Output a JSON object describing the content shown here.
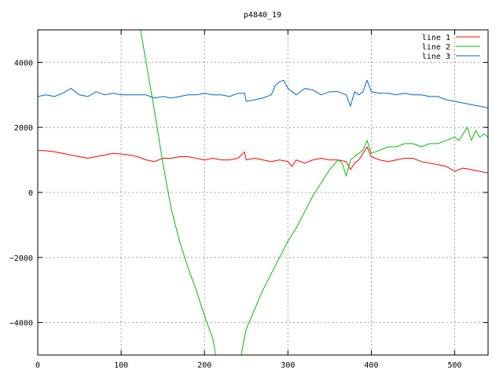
{
  "chart_data": {
    "type": "line",
    "title": "p4840_19",
    "xlabel": "",
    "ylabel": "",
    "xlim": [
      0,
      540
    ],
    "ylim": [
      -5000,
      5000
    ],
    "xticks": [
      0,
      100,
      200,
      300,
      400,
      500
    ],
    "yticks": [
      -4000,
      -2000,
      0,
      2000,
      4000
    ],
    "xtick_labels": [
      "0",
      "100",
      "200",
      "300",
      "400",
      "500"
    ],
    "ytick_labels": [
      "−4000",
      "−2000",
      "0",
      "2000",
      "4000"
    ],
    "grid": true,
    "legend_position": "top-right",
    "series": [
      {
        "name": "line 1",
        "color": "#ff0000",
        "x": [
          0,
          10,
          20,
          30,
          40,
          50,
          60,
          70,
          80,
          90,
          100,
          110,
          120,
          130,
          140,
          150,
          160,
          170,
          180,
          190,
          200,
          210,
          220,
          230,
          240,
          248,
          250,
          260,
          270,
          280,
          290,
          300,
          305,
          310,
          320,
          330,
          340,
          350,
          360,
          370,
          375,
          380,
          385,
          390,
          395,
          400,
          410,
          420,
          430,
          440,
          450,
          460,
          470,
          480,
          490,
          500,
          510,
          520,
          530,
          540
        ],
        "y": [
          1300,
          1280,
          1250,
          1200,
          1150,
          1100,
          1050,
          1100,
          1150,
          1200,
          1180,
          1150,
          1100,
          1000,
          950,
          1050,
          1050,
          1100,
          1100,
          1050,
          1000,
          1050,
          1000,
          1000,
          1050,
          1250,
          1000,
          1050,
          1000,
          950,
          1000,
          950,
          800,
          1000,
          900,
          1000,
          1050,
          1000,
          1000,
          950,
          700,
          900,
          1000,
          1200,
          1400,
          1100,
          1000,
          950,
          1000,
          1050,
          1050,
          950,
          900,
          850,
          800,
          650,
          750,
          700,
          650,
          600
        ]
      },
      {
        "name": "line 2",
        "color": "#00c000",
        "x": [
          120,
          130,
          140,
          150,
          160,
          170,
          180,
          190,
          200,
          210,
          215,
          220,
          230,
          240,
          250,
          260,
          270,
          280,
          290,
          300,
          310,
          320,
          330,
          340,
          350,
          360,
          365,
          370,
          375,
          380,
          385,
          390,
          395,
          400,
          410,
          420,
          430,
          440,
          450,
          460,
          470,
          480,
          490,
          500,
          505,
          510,
          515,
          520,
          525,
          530,
          535,
          540
        ],
        "y": [
          5500,
          4000,
          2500,
          900,
          -500,
          -1500,
          -2300,
          -3000,
          -3800,
          -4500,
          -5200,
          -6000,
          -6000,
          -5500,
          -4200,
          -3600,
          -3000,
          -2500,
          -2000,
          -1500,
          -1100,
          -600,
          -100,
          300,
          700,
          1000,
          900,
          500,
          1000,
          1100,
          1200,
          1300,
          1600,
          1200,
          1300,
          1400,
          1400,
          1500,
          1500,
          1400,
          1500,
          1500,
          1600,
          1700,
          1600,
          1800,
          2000,
          1600,
          1900,
          1700,
          1800,
          1700
        ]
      },
      {
        "name": "line 3",
        "color": "#0066cc",
        "x": [
          0,
          10,
          20,
          30,
          40,
          50,
          60,
          70,
          80,
          90,
          100,
          110,
          120,
          130,
          140,
          150,
          160,
          170,
          180,
          190,
          200,
          210,
          220,
          230,
          240,
          248,
          250,
          260,
          270,
          280,
          285,
          290,
          295,
          300,
          310,
          320,
          330,
          340,
          350,
          360,
          370,
          375,
          380,
          385,
          390,
          395,
          400,
          410,
          420,
          430,
          440,
          450,
          460,
          470,
          480,
          490,
          500,
          510,
          520,
          530,
          540
        ],
        "y": [
          2950,
          3000,
          2950,
          3050,
          3200,
          3000,
          2950,
          3100,
          3000,
          3050,
          3000,
          3000,
          3000,
          3000,
          2900,
          2950,
          2900,
          2950,
          3000,
          3000,
          3050,
          3000,
          3000,
          2950,
          3050,
          3050,
          2800,
          2850,
          2900,
          3000,
          3300,
          3400,
          3450,
          3200,
          3000,
          3200,
          3150,
          3000,
          3100,
          3100,
          3000,
          2650,
          3100,
          3000,
          3100,
          3450,
          3100,
          3050,
          3050,
          3000,
          3050,
          3000,
          3000,
          2950,
          2950,
          2850,
          2800,
          2750,
          2700,
          2650,
          2600
        ]
      }
    ]
  }
}
